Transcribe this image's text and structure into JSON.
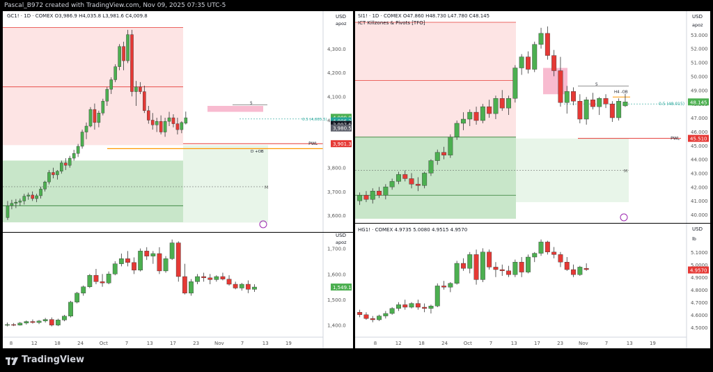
{
  "header": {
    "text": "Pascal_B972 created with TradingView.com, Nov 09, 2025 07:35 UTC-5"
  },
  "brand": {
    "name": "TradingView"
  },
  "colors": {
    "up": "#4caf50",
    "down": "#e53935",
    "grid": "#f0f3fa",
    "axis": "#555",
    "orange": "#ff9800"
  },
  "x_ticks": [
    "8",
    "12",
    "18",
    "24",
    "Oct",
    "7",
    "13",
    "17",
    "23",
    "Nov",
    "7",
    "13",
    "19"
  ],
  "x_ticks_right": [
    "8",
    "12",
    "18",
    "24",
    "Oct",
    "7",
    "13",
    "17",
    "23",
    "Nov",
    "7",
    "13",
    "19"
  ],
  "gc": {
    "legend": "GC1! · 1D · COMEX  O3,986.9  H4,035.8  L3,981.6  C4,009.8",
    "currency": "USD",
    "currency_sub": "apoz",
    "y_ticks": [
      "4,300.0",
      "4,200.0",
      "4,100.0",
      "4,000.0",
      "3,800.0",
      "3,700.0",
      "3,600.0"
    ],
    "badges": [
      {
        "text": "4,009.8",
        "color": "#4caf50"
      },
      {
        "text": "4,006.2",
        "color": "#26a69a"
      },
      {
        "text": "3,997.6",
        "color": "#131722"
      },
      {
        "text": "3,980.5",
        "color": "#5d606b"
      },
      {
        "text": "3,901.3",
        "color": "#e53935"
      }
    ],
    "labels": {
      "pwl": "PWL",
      "d_ob": "D +OB",
      "half": "0.5 (4,005.5)",
      "m": "M",
      "s": "S"
    },
    "chart_data": {
      "type": "candlestick",
      "ylim": [
        3550,
        4400
      ],
      "candles": [
        [
          3590,
          3660,
          3580,
          3640
        ],
        [
          3640,
          3665,
          3625,
          3650
        ],
        [
          3650,
          3668,
          3630,
          3655
        ],
        [
          3655,
          3670,
          3640,
          3660
        ],
        [
          3660,
          3690,
          3645,
          3680
        ],
        [
          3680,
          3695,
          3665,
          3685
        ],
        [
          3685,
          3700,
          3660,
          3670
        ],
        [
          3670,
          3690,
          3655,
          3682
        ],
        [
          3682,
          3720,
          3670,
          3710
        ],
        [
          3710,
          3745,
          3700,
          3740
        ],
        [
          3740,
          3790,
          3730,
          3780
        ],
        [
          3780,
          3800,
          3755,
          3770
        ],
        [
          3770,
          3790,
          3750,
          3785
        ],
        [
          3785,
          3830,
          3775,
          3820
        ],
        [
          3820,
          3840,
          3790,
          3810
        ],
        [
          3810,
          3850,
          3800,
          3840
        ],
        [
          3840,
          3875,
          3830,
          3860
        ],
        [
          3860,
          3900,
          3845,
          3890
        ],
        [
          3890,
          3960,
          3880,
          3950
        ],
        [
          3950,
          3990,
          3920,
          3975
        ],
        [
          3975,
          4055,
          3970,
          4045
        ],
        [
          4045,
          4070,
          3960,
          3990
        ],
        [
          3990,
          4040,
          3970,
          4030
        ],
        [
          4030,
          4090,
          4020,
          4080
        ],
        [
          4080,
          4140,
          4060,
          4130
        ],
        [
          4130,
          4180,
          4110,
          4170
        ],
        [
          4170,
          4235,
          4160,
          4225
        ],
        [
          4225,
          4320,
          4210,
          4310
        ],
        [
          4310,
          4330,
          4210,
          4250
        ],
        [
          4250,
          4380,
          4240,
          4360
        ],
        [
          4360,
          4380,
          4100,
          4120
        ],
        [
          4120,
          4165,
          4060,
          4140
        ],
        [
          4140,
          4160,
          4110,
          4120
        ],
        [
          4120,
          4145,
          4030,
          4040
        ],
        [
          4040,
          4060,
          3985,
          4000
        ],
        [
          4000,
          4030,
          3960,
          3980
        ],
        [
          3980,
          4010,
          3950,
          3995
        ],
        [
          3995,
          4020,
          3940,
          3950
        ],
        [
          3950,
          4010,
          3930,
          3995
        ],
        [
          3995,
          4035,
          3975,
          4010
        ],
        [
          4010,
          4025,
          3970,
          3985
        ],
        [
          3985,
          4010,
          3940,
          3960
        ],
        [
          3960,
          3995,
          3945,
          3990
        ],
        [
          3987,
          4036,
          3982,
          4010
        ]
      ]
    }
  },
  "gc_vol": {
    "currency": "USD",
    "currency_sub": "apoz",
    "y_ticks": [
      "1,700.0",
      "1,600.0",
      "1,500.0",
      "1,400.0"
    ],
    "badge": "1,549.1",
    "chart_data": {
      "type": "candlestick",
      "ylim": [
        1380,
        1740
      ],
      "candles": [
        [
          1400,
          1410,
          1395,
          1402
        ],
        [
          1402,
          1408,
          1396,
          1400
        ],
        [
          1400,
          1412,
          1398,
          1408
        ],
        [
          1408,
          1418,
          1402,
          1414
        ],
        [
          1414,
          1422,
          1406,
          1410
        ],
        [
          1410,
          1420,
          1404,
          1416
        ],
        [
          1416,
          1428,
          1410,
          1422
        ],
        [
          1422,
          1430,
          1395,
          1400
        ],
        [
          1400,
          1425,
          1396,
          1420
        ],
        [
          1420,
          1440,
          1415,
          1435
        ],
        [
          1435,
          1495,
          1430,
          1490
        ],
        [
          1490,
          1530,
          1485,
          1525
        ],
        [
          1525,
          1555,
          1515,
          1550
        ],
        [
          1550,
          1600,
          1545,
          1595
        ],
        [
          1595,
          1620,
          1560,
          1570
        ],
        [
          1570,
          1600,
          1550,
          1565
        ],
        [
          1565,
          1610,
          1560,
          1600
        ],
        [
          1600,
          1650,
          1595,
          1640
        ],
        [
          1640,
          1680,
          1630,
          1660
        ],
        [
          1660,
          1690,
          1630,
          1645
        ],
        [
          1645,
          1665,
          1600,
          1615
        ],
        [
          1615,
          1700,
          1610,
          1690
        ],
        [
          1690,
          1705,
          1655,
          1670
        ],
        [
          1670,
          1690,
          1640,
          1680
        ],
        [
          1680,
          1705,
          1600,
          1612
        ],
        [
          1612,
          1670,
          1605,
          1660
        ],
        [
          1660,
          1735,
          1655,
          1722
        ],
        [
          1722,
          1728,
          1570,
          1590
        ],
        [
          1590,
          1640,
          1520,
          1525
        ],
        [
          1525,
          1580,
          1515,
          1570
        ],
        [
          1570,
          1600,
          1560,
          1590
        ],
        [
          1590,
          1605,
          1570,
          1585
        ],
        [
          1585,
          1600,
          1560,
          1578
        ],
        [
          1578,
          1595,
          1570,
          1590
        ],
        [
          1590,
          1605,
          1575,
          1580
        ],
        [
          1580,
          1595,
          1555,
          1560
        ],
        [
          1560,
          1570,
          1540,
          1545
        ],
        [
          1545,
          1565,
          1535,
          1560
        ],
        [
          1560,
          1575,
          1525,
          1540
        ],
        [
          1540,
          1560,
          1530,
          1549
        ]
      ]
    }
  },
  "si": {
    "legend": "SI1! · 1D · COMEX  O47.860  H48.730  L47.780  C48.145",
    "legend2": "ICT Killzones & Pivots [TFO]",
    "currency": "USD",
    "currency_sub": "apoz",
    "y_ticks": [
      "53.000",
      "52.000",
      "51.000",
      "50.000",
      "49.000",
      "48.000",
      "47.000",
      "46.000",
      "45.000",
      "44.000",
      "43.000",
      "42.000",
      "41.000",
      "40.000"
    ],
    "badges": [
      {
        "text": "48.145",
        "color": "#4caf50"
      },
      {
        "text": "45.510",
        "color": "#e53935"
      }
    ],
    "labels": {
      "pwl": "PWL",
      "half": "0.5 (48.015)",
      "m": "M",
      "s": "S",
      "h4_ob": "H4 -OB"
    },
    "chart_data": {
      "type": "candlestick",
      "ylim": [
        39.6,
        54.0
      ],
      "candles": [
        [
          41.0,
          41.6,
          40.7,
          41.4
        ],
        [
          41.4,
          41.7,
          40.9,
          41.1
        ],
        [
          41.1,
          41.9,
          40.8,
          41.7
        ],
        [
          41.7,
          42.0,
          41.2,
          41.4
        ],
        [
          41.4,
          42.2,
          41.1,
          42.0
        ],
        [
          42.0,
          42.6,
          41.8,
          42.4
        ],
        [
          42.4,
          43.1,
          42.2,
          42.9
        ],
        [
          42.9,
          43.2,
          42.4,
          42.6
        ],
        [
          42.6,
          43.0,
          41.9,
          42.2
        ],
        [
          42.2,
          42.7,
          41.7,
          42.1
        ],
        [
          42.1,
          43.1,
          41.9,
          43.0
        ],
        [
          43.0,
          44.0,
          42.8,
          43.9
        ],
        [
          43.9,
          44.7,
          43.6,
          44.5
        ],
        [
          44.5,
          44.9,
          44.0,
          44.3
        ],
        [
          44.3,
          45.8,
          44.1,
          45.6
        ],
        [
          45.6,
          46.8,
          45.4,
          46.6
        ],
        [
          46.6,
          47.4,
          46.1,
          46.9
        ],
        [
          46.9,
          47.6,
          46.4,
          47.4
        ],
        [
          47.4,
          47.8,
          46.5,
          46.8
        ],
        [
          46.8,
          48.0,
          46.6,
          47.8
        ],
        [
          47.8,
          48.3,
          47.0,
          47.3
        ],
        [
          47.3,
          48.6,
          46.9,
          48.4
        ],
        [
          48.4,
          49.0,
          47.5,
          47.7
        ],
        [
          47.7,
          48.6,
          47.2,
          48.4
        ],
        [
          48.4,
          50.8,
          48.1,
          50.6
        ],
        [
          50.6,
          51.6,
          50.1,
          51.4
        ],
        [
          51.4,
          51.8,
          50.2,
          50.5
        ],
        [
          50.5,
          52.5,
          50.3,
          52.3
        ],
        [
          52.3,
          53.5,
          52.0,
          53.1
        ],
        [
          53.1,
          53.6,
          51.2,
          51.5
        ],
        [
          51.5,
          51.9,
          50.0,
          50.4
        ],
        [
          50.4,
          51.4,
          47.8,
          48.1
        ],
        [
          48.1,
          49.3,
          47.3,
          48.9
        ],
        [
          48.9,
          49.2,
          47.9,
          48.2
        ],
        [
          48.2,
          48.7,
          46.6,
          46.9
        ],
        [
          46.9,
          48.5,
          46.5,
          48.3
        ],
        [
          48.3,
          48.8,
          47.6,
          47.8
        ],
        [
          47.8,
          48.5,
          47.2,
          48.4
        ],
        [
          48.4,
          48.7,
          47.7,
          48.0
        ],
        [
          48.0,
          48.2,
          46.7,
          47.0
        ],
        [
          47.0,
          48.4,
          46.8,
          48.2
        ],
        [
          47.86,
          48.73,
          47.78,
          48.145
        ]
      ]
    }
  },
  "hg": {
    "legend": "HG1! · COMEX  4.9735  5.0080  4.9515  4.9570",
    "currency": "USD",
    "currency_sub": "lb",
    "y_ticks": [
      "5.1000",
      "5.0000",
      "4.9000",
      "4.8000",
      "4.7000",
      "4.6000",
      "4.5000"
    ],
    "badge": "4.9570",
    "chart_data": {
      "type": "candlestick",
      "ylim": [
        4.46,
        5.26
      ],
      "candles": [
        [
          4.62,
          4.64,
          4.58,
          4.6
        ],
        [
          4.6,
          4.62,
          4.56,
          4.57
        ],
        [
          4.57,
          4.59,
          4.54,
          4.56
        ],
        [
          4.56,
          4.6,
          4.55,
          4.59
        ],
        [
          4.59,
          4.63,
          4.57,
          4.61
        ],
        [
          4.61,
          4.66,
          4.6,
          4.65
        ],
        [
          4.65,
          4.7,
          4.63,
          4.68
        ],
        [
          4.68,
          4.72,
          4.64,
          4.66
        ],
        [
          4.66,
          4.7,
          4.65,
          4.69
        ],
        [
          4.69,
          4.72,
          4.64,
          4.66
        ],
        [
          4.66,
          4.69,
          4.62,
          4.65
        ],
        [
          4.65,
          4.68,
          4.61,
          4.67
        ],
        [
          4.67,
          4.85,
          4.66,
          4.83
        ],
        [
          4.83,
          4.87,
          4.8,
          4.82
        ],
        [
          4.82,
          4.86,
          4.78,
          4.85
        ],
        [
          4.85,
          5.03,
          4.84,
          5.01
        ],
        [
          5.01,
          5.05,
          4.95,
          4.97
        ],
        [
          4.97,
          5.1,
          4.93,
          5.08
        ],
        [
          5.08,
          5.12,
          4.84,
          4.88
        ],
        [
          4.88,
          5.13,
          4.86,
          5.1
        ],
        [
          5.1,
          5.12,
          4.96,
          4.98
        ],
        [
          4.98,
          5.02,
          4.9,
          4.96
        ],
        [
          4.96,
          5.0,
          4.91,
          4.95
        ],
        [
          4.95,
          4.99,
          4.9,
          4.92
        ],
        [
          4.92,
          5.04,
          4.9,
          5.02
        ],
        [
          5.02,
          5.06,
          4.9,
          4.94
        ],
        [
          4.94,
          5.08,
          4.93,
          5.06
        ],
        [
          5.06,
          5.1,
          5.02,
          5.09
        ],
        [
          5.09,
          5.2,
          5.07,
          5.18
        ],
        [
          5.18,
          5.19,
          5.08,
          5.1
        ],
        [
          5.1,
          5.14,
          5.05,
          5.08
        ],
        [
          5.08,
          5.1,
          4.98,
          5.02
        ],
        [
          5.02,
          5.06,
          4.95,
          4.96
        ],
        [
          4.96,
          5.0,
          4.9,
          4.92
        ],
        [
          4.92,
          4.99,
          4.91,
          4.98
        ],
        [
          4.97,
          5.01,
          4.95,
          4.96
        ]
      ]
    }
  }
}
